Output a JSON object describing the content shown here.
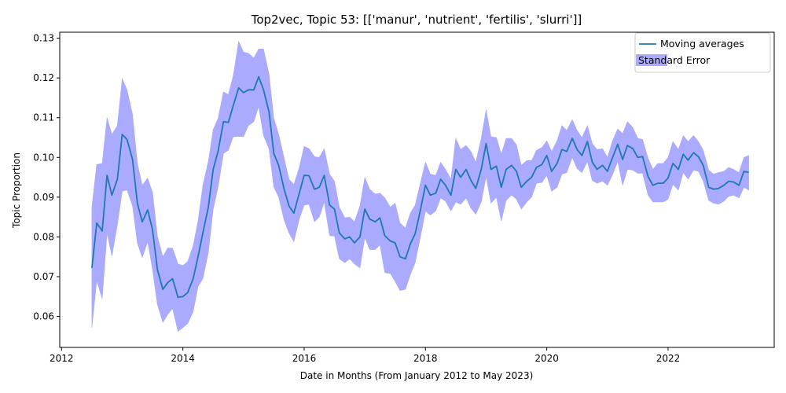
{
  "chart_data": {
    "type": "line",
    "title": "Top2vec, Topic 53: [['manur', 'nutrient', 'fertilis', 'slurri']]",
    "xlabel": "Date in Months (From January 2012 to May 2023)",
    "ylabel": "Topic Proportion",
    "xlim": [
      2011.97,
      2023.75
    ],
    "ylim": [
      0.0522,
      0.1315
    ],
    "x_ticks": [
      {
        "value": 2012,
        "label": "2012"
      },
      {
        "value": 2014,
        "label": "2014"
      },
      {
        "value": 2016,
        "label": "2016"
      },
      {
        "value": 2018,
        "label": "2018"
      },
      {
        "value": 2020,
        "label": "2020"
      },
      {
        "value": 2022,
        "label": "2022"
      }
    ],
    "y_ticks": [
      {
        "value": 0.06,
        "label": "0.06"
      },
      {
        "value": 0.07,
        "label": "0.07"
      },
      {
        "value": 0.08,
        "label": "0.08"
      },
      {
        "value": 0.09,
        "label": "0.09"
      },
      {
        "value": 0.1,
        "label": "0.10"
      },
      {
        "value": 0.11,
        "label": "0.11"
      },
      {
        "value": 0.12,
        "label": "0.12"
      },
      {
        "value": 0.13,
        "label": "0.13"
      }
    ],
    "grid": false,
    "legend_position": "top-right",
    "series": [
      {
        "name": "Moving averages",
        "kind": "line",
        "color": "#1f77b4",
        "x": [
          2012.5,
          2012.58,
          2012.67,
          2012.75,
          2012.83,
          2012.92,
          2013.0,
          2013.08,
          2013.17,
          2013.25,
          2013.33,
          2013.42,
          2013.5,
          2013.58,
          2013.67,
          2013.75,
          2013.83,
          2013.92,
          2014.0,
          2014.08,
          2014.17,
          2014.25,
          2014.33,
          2014.42,
          2014.5,
          2014.58,
          2014.67,
          2014.75,
          2014.83,
          2014.92,
          2015.0,
          2015.08,
          2015.17,
          2015.25,
          2015.33,
          2015.42,
          2015.5,
          2015.58,
          2015.67,
          2015.75,
          2015.83,
          2015.92,
          2016.0,
          2016.08,
          2016.17,
          2016.25,
          2016.33,
          2016.42,
          2016.5,
          2016.58,
          2016.67,
          2016.75,
          2016.83,
          2016.92,
          2017.0,
          2017.08,
          2017.17,
          2017.25,
          2017.33,
          2017.42,
          2017.5,
          2017.58,
          2017.67,
          2017.75,
          2017.83,
          2017.92,
          2018.0,
          2018.08,
          2018.17,
          2018.25,
          2018.33,
          2018.42,
          2018.5,
          2018.58,
          2018.67,
          2018.75,
          2018.83,
          2018.92,
          2019.0,
          2019.08,
          2019.17,
          2019.25,
          2019.33,
          2019.42,
          2019.5,
          2019.58,
          2019.67,
          2019.75,
          2019.83,
          2019.92,
          2020.0,
          2020.08,
          2020.17,
          2020.25,
          2020.33,
          2020.42,
          2020.5,
          2020.58,
          2020.67,
          2020.75,
          2020.83,
          2020.92,
          2021.0,
          2021.08,
          2021.17,
          2021.25,
          2021.33,
          2021.42,
          2021.5,
          2021.58,
          2021.67,
          2021.75,
          2021.83,
          2021.92,
          2022.0,
          2022.08,
          2022.17,
          2022.25,
          2022.33,
          2022.42,
          2022.5,
          2022.58,
          2022.67,
          2022.75,
          2022.83,
          2022.92,
          2023.0,
          2023.08,
          2023.17,
          2023.25,
          2023.33
        ],
        "y": [
          0.0722,
          0.0835,
          0.0815,
          0.0955,
          0.0905,
          0.0945,
          0.1058,
          0.1045,
          0.0995,
          0.0885,
          0.0838,
          0.0868,
          0.0818,
          0.0718,
          0.0668,
          0.0685,
          0.0695,
          0.0648,
          0.065,
          0.066,
          0.0695,
          0.075,
          0.081,
          0.0875,
          0.097,
          0.1015,
          0.109,
          0.1088,
          0.113,
          0.1175,
          0.1163,
          0.117,
          0.117,
          0.1203,
          0.117,
          0.1115,
          0.101,
          0.098,
          0.092,
          0.0878,
          0.086,
          0.091,
          0.0955,
          0.0954,
          0.092,
          0.0925,
          0.0955,
          0.088,
          0.087,
          0.081,
          0.0795,
          0.08,
          0.0785,
          0.08,
          0.087,
          0.0845,
          0.0838,
          0.0848,
          0.0803,
          0.079,
          0.0785,
          0.075,
          0.0745,
          0.0782,
          0.0808,
          0.087,
          0.093,
          0.0905,
          0.091,
          0.0945,
          0.093,
          0.0905,
          0.097,
          0.095,
          0.097,
          0.0942,
          0.0922,
          0.097,
          0.1035,
          0.097,
          0.0978,
          0.0925,
          0.097,
          0.098,
          0.0965,
          0.0925,
          0.094,
          0.095,
          0.0975,
          0.0982,
          0.1005,
          0.0965,
          0.0985,
          0.102,
          0.1015,
          0.1048,
          0.102,
          0.1005,
          0.104,
          0.0988,
          0.097,
          0.098,
          0.0965,
          0.0998,
          0.1033,
          0.0995,
          0.103,
          0.1022,
          0.1,
          0.1002,
          0.0952,
          0.093,
          0.0935,
          0.0935,
          0.0948,
          0.0985,
          0.097,
          0.1008,
          0.0993,
          0.1012,
          0.1002,
          0.098,
          0.0925,
          0.092,
          0.0922,
          0.093,
          0.094,
          0.0938,
          0.093,
          0.0965,
          0.0962
        ]
      },
      {
        "name": "Standard Error",
        "kind": "band",
        "color": "#aaaaff",
        "x": [
          2012.5,
          2012.58,
          2012.67,
          2012.75,
          2012.83,
          2012.92,
          2013.0,
          2013.08,
          2013.17,
          2013.25,
          2013.33,
          2013.42,
          2013.5,
          2013.58,
          2013.67,
          2013.75,
          2013.83,
          2013.92,
          2014.0,
          2014.08,
          2014.17,
          2014.25,
          2014.33,
          2014.42,
          2014.5,
          2014.58,
          2014.67,
          2014.75,
          2014.83,
          2014.92,
          2015.0,
          2015.08,
          2015.17,
          2015.25,
          2015.33,
          2015.42,
          2015.5,
          2015.58,
          2015.67,
          2015.75,
          2015.83,
          2015.92,
          2016.0,
          2016.08,
          2016.17,
          2016.25,
          2016.33,
          2016.42,
          2016.5,
          2016.58,
          2016.67,
          2016.75,
          2016.83,
          2016.92,
          2017.0,
          2017.08,
          2017.17,
          2017.25,
          2017.33,
          2017.42,
          2017.5,
          2017.58,
          2017.67,
          2017.75,
          2017.83,
          2017.92,
          2018.0,
          2018.08,
          2018.17,
          2018.25,
          2018.33,
          2018.42,
          2018.5,
          2018.58,
          2018.67,
          2018.75,
          2018.83,
          2018.92,
          2019.0,
          2019.08,
          2019.17,
          2019.25,
          2019.33,
          2019.42,
          2019.5,
          2019.58,
          2019.67,
          2019.75,
          2019.83,
          2019.92,
          2020.0,
          2020.08,
          2020.17,
          2020.25,
          2020.33,
          2020.42,
          2020.5,
          2020.58,
          2020.67,
          2020.75,
          2020.83,
          2020.92,
          2021.0,
          2021.08,
          2021.17,
          2021.25,
          2021.33,
          2021.42,
          2021.5,
          2021.58,
          2021.67,
          2021.75,
          2021.83,
          2021.92,
          2022.0,
          2022.08,
          2022.17,
          2022.25,
          2022.33,
          2022.42,
          2022.5,
          2022.58,
          2022.67,
          2022.75,
          2022.83,
          2022.92,
          2023.0,
          2023.08,
          2023.17,
          2023.25,
          2023.33
        ],
        "lower": [
          0.0572,
          0.069,
          0.0645,
          0.081,
          0.0752,
          0.083,
          0.0915,
          0.0918,
          0.0878,
          0.0785,
          0.0748,
          0.0788,
          0.0718,
          0.063,
          0.0585,
          0.0605,
          0.062,
          0.0562,
          0.0572,
          0.0582,
          0.0612,
          0.0675,
          0.0695,
          0.076,
          0.087,
          0.0925,
          0.101,
          0.1018,
          0.1052,
          0.1053,
          0.1052,
          0.108,
          0.109,
          0.1128,
          0.1055,
          0.1022,
          0.0925,
          0.09,
          0.0842,
          0.081,
          0.0788,
          0.0845,
          0.088,
          0.0882,
          0.0838,
          0.085,
          0.0888,
          0.0803,
          0.0802,
          0.0745,
          0.0735,
          0.0745,
          0.0732,
          0.0722,
          0.0798,
          0.0768,
          0.0768,
          0.078,
          0.071,
          0.0708,
          0.0688,
          0.0665,
          0.0668,
          0.0705,
          0.0735,
          0.0802,
          0.0865,
          0.0855,
          0.0865,
          0.0898,
          0.089,
          0.0865,
          0.0888,
          0.0882,
          0.0898,
          0.0872,
          0.0857,
          0.0888,
          0.0952,
          0.0885,
          0.09,
          0.084,
          0.0892,
          0.0905,
          0.0895,
          0.087,
          0.0888,
          0.09,
          0.0935,
          0.0937,
          0.0955,
          0.0915,
          0.0925,
          0.0958,
          0.0962,
          0.1,
          0.0972,
          0.0962,
          0.099,
          0.0942,
          0.0935,
          0.094,
          0.093,
          0.0955,
          0.099,
          0.093,
          0.097,
          0.0968,
          0.096,
          0.096,
          0.0905,
          0.0888,
          0.0888,
          0.0888,
          0.0895,
          0.0932,
          0.0918,
          0.0962,
          0.0945,
          0.0968,
          0.0965,
          0.094,
          0.0892,
          0.0885,
          0.0882,
          0.089,
          0.0902,
          0.0905,
          0.0898,
          0.0925,
          0.0918
        ],
        "upper": [
          0.0875,
          0.0982,
          0.0985,
          0.11,
          0.1058,
          0.108,
          0.1198,
          0.117,
          0.1108,
          0.0985,
          0.093,
          0.0948,
          0.0912,
          0.0802,
          0.075,
          0.0772,
          0.0772,
          0.0732,
          0.0728,
          0.0738,
          0.0778,
          0.084,
          0.093,
          0.099,
          0.107,
          0.1098,
          0.1165,
          0.1158,
          0.1205,
          0.1292,
          0.1265,
          0.1262,
          0.125,
          0.1273,
          0.1273,
          0.121,
          0.1098,
          0.1058,
          0.0998,
          0.0945,
          0.0932,
          0.0975,
          0.1028,
          0.1022,
          0.1002,
          0.1,
          0.1022,
          0.0958,
          0.094,
          0.0875,
          0.0848,
          0.085,
          0.0838,
          0.0878,
          0.095,
          0.092,
          0.0908,
          0.091,
          0.0898,
          0.0875,
          0.0885,
          0.0835,
          0.0822,
          0.086,
          0.088,
          0.0938,
          0.0988,
          0.0958,
          0.0955,
          0.0988,
          0.097,
          0.0945,
          0.1048,
          0.102,
          0.103,
          0.1015,
          0.0988,
          0.1048,
          0.112,
          0.1052,
          0.105,
          0.1008,
          0.1048,
          0.1048,
          0.1032,
          0.098,
          0.0992,
          0.0992,
          0.1018,
          0.1025,
          0.1042,
          0.1015,
          0.1042,
          0.108,
          0.1068,
          0.1095,
          0.1068,
          0.105,
          0.108,
          0.1035,
          0.102,
          0.1022,
          0.1,
          0.104,
          0.1072,
          0.106,
          0.109,
          0.1075,
          0.1048,
          0.1045,
          0.0998,
          0.097,
          0.0985,
          0.0985,
          0.1,
          0.104,
          0.102,
          0.1055,
          0.104,
          0.1055,
          0.104,
          0.1018,
          0.0968,
          0.0958,
          0.0962,
          0.0965,
          0.0975,
          0.097,
          0.0962,
          0.1,
          0.1005
        ]
      }
    ]
  }
}
